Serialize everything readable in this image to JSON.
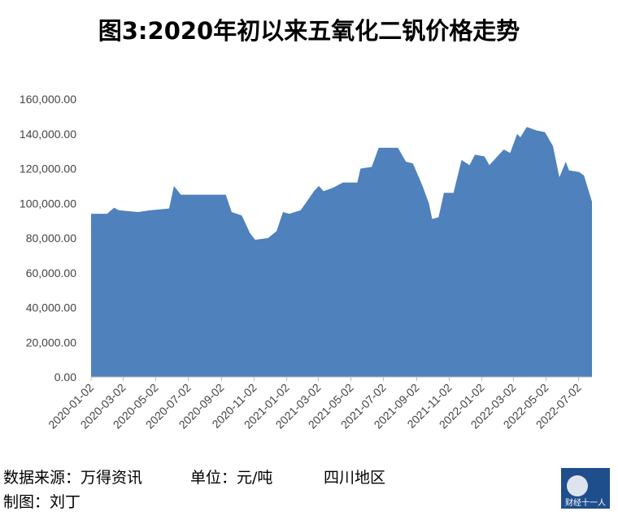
{
  "chart_data": {
    "type": "area",
    "title": "图3:2020年初以来五氧化二钒价格走势",
    "color": "#4f81bd",
    "x": [
      "2020-01-02",
      "2020-02-01",
      "2020-02-14",
      "2020-02-23",
      "2020-03-30",
      "2020-04-22",
      "2020-05-27",
      "2020-06-05",
      "2020-06-18",
      "2020-09-10",
      "2020-09-21",
      "2020-10-10",
      "2020-10-25",
      "2020-11-04",
      "2020-11-28",
      "2020-12-14",
      "2020-12-26",
      "2021-01-07",
      "2021-01-28",
      "2021-02-22",
      "2021-03-03",
      "2021-03-12",
      "2021-03-30",
      "2021-04-17",
      "2021-05-14",
      "2021-05-20",
      "2021-06-10",
      "2021-06-23",
      "2021-07-29",
      "2021-08-13",
      "2021-08-26",
      "2021-09-13",
      "2021-09-25",
      "2021-10-01",
      "2021-10-13",
      "2021-10-23",
      "2021-11-10",
      "2021-11-25",
      "2021-12-10",
      "2021-12-20",
      "2022-01-07",
      "2022-01-16",
      "2022-01-28",
      "2022-02-12",
      "2022-02-24",
      "2022-03-09",
      "2022-03-15",
      "2022-03-27",
      "2022-04-14",
      "2022-04-30",
      "2022-05-15",
      "2022-05-27",
      "2022-06-08",
      "2022-06-14",
      "2022-07-03",
      "2022-07-12",
      "2022-07-27"
    ],
    "values": [
      94000,
      94000,
      97500,
      96000,
      95000,
      96000,
      97000,
      110000,
      105000,
      105000,
      95000,
      93000,
      83000,
      79000,
      80000,
      84000,
      95000,
      94000,
      96000,
      107000,
      110000,
      107000,
      109000,
      112000,
      112000,
      120000,
      121000,
      132000,
      132000,
      124000,
      123000,
      110000,
      100000,
      91000,
      92000,
      106000,
      106000,
      125000,
      122000,
      128000,
      127000,
      122000,
      126000,
      131000,
      129000,
      140000,
      138000,
      144000,
      142000,
      141000,
      133000,
      115000,
      124000,
      119000,
      118000,
      116000,
      101000
    ],
    "xlim": [
      "2020-01-02",
      "2022-07-27"
    ],
    "xticks": [
      "2020-01-02",
      "2020-03-02",
      "2020-05-02",
      "2020-07-02",
      "2020-09-02",
      "2020-11-02",
      "2021-01-02",
      "2021-03-02",
      "2021-05-02",
      "2021-07-02",
      "2021-09-02",
      "2021-11-02",
      "2022-01-02",
      "2022-03-02",
      "2022-05-02",
      "2022-07-02"
    ],
    "ylim": [
      0,
      160000
    ],
    "yticks": [
      {
        "value": 0,
        "label": "0.00"
      },
      {
        "value": 20000,
        "label": "20,000.00"
      },
      {
        "value": 40000,
        "label": "40,000.00"
      },
      {
        "value": 60000,
        "label": "60,000.00"
      },
      {
        "value": 80000,
        "label": "80,000.00"
      },
      {
        "value": 100000,
        "label": "100,000.00"
      },
      {
        "value": 120000,
        "label": "120,000.00"
      },
      {
        "value": 140000,
        "label": "140,000.00"
      },
      {
        "value": 160000,
        "label": "160,000.00"
      }
    ]
  },
  "footer": {
    "source": "数据来源：万得资讯",
    "unit": "单位：元/吨",
    "region": "四川地区",
    "author": "制图：刘丁",
    "logo": "财经十一人"
  }
}
